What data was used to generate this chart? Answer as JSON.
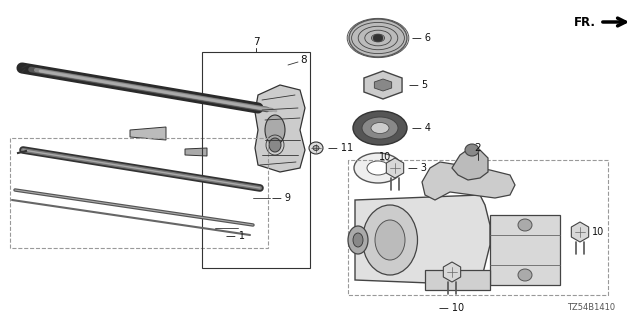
{
  "background_color": "#ffffff",
  "diagram_id": "TZ54B1410",
  "line_color": "#333333",
  "label_color": "#111111",
  "dashed_color": "#999999",
  "gray_dark": "#444444",
  "gray_mid": "#888888",
  "gray_light": "#cccccc",
  "gray_very_light": "#eeeeee"
}
